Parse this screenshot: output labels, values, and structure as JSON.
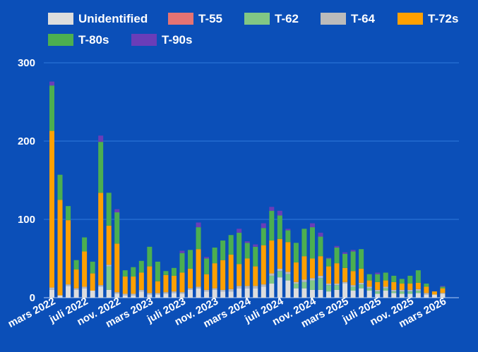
{
  "chart_data": {
    "type": "bar",
    "stacked": true,
    "title": "",
    "xlabel": "",
    "ylabel": "",
    "ylim": [
      0,
      300
    ],
    "yticks": [
      0,
      100,
      200,
      300
    ],
    "grid": true,
    "legend_position": "top",
    "tick_labels": [
      "mars 2022",
      "juli 2022",
      "nov. 2022",
      "mars 2023",
      "juli 2023",
      "nov. 2023",
      "mars 2024",
      "juli 2024",
      "nov. 2024",
      "mars 2025",
      "juli 2025",
      "nov. 2025",
      "mars 2026"
    ],
    "tick_months": [
      0,
      4,
      8,
      12,
      16,
      20,
      24,
      28,
      32,
      36,
      40,
      44,
      48
    ],
    "series": [
      {
        "name": "Unidentified",
        "color": "#dddddd",
        "values": [
          10,
          3,
          15,
          10,
          12,
          9,
          14,
          10,
          5,
          3,
          3,
          8,
          4,
          4,
          5,
          6,
          5,
          10,
          12,
          8,
          10,
          8,
          8,
          12,
          12,
          12,
          14,
          18,
          26,
          22,
          12,
          12,
          10,
          10,
          8,
          10,
          18,
          9,
          12,
          9,
          5,
          9,
          6,
          5,
          5,
          6,
          4,
          4,
          5
        ]
      },
      {
        "name": "T-55",
        "color": "#e57373",
        "values": [
          0,
          0,
          0,
          0,
          0,
          0,
          0,
          0,
          0,
          0,
          0,
          0,
          0,
          0,
          0,
          0,
          0,
          0,
          0,
          0,
          0,
          0,
          0,
          0,
          0,
          0,
          0,
          0,
          0,
          0,
          0,
          0,
          0,
          0,
          0,
          0,
          0,
          0,
          0,
          0,
          0,
          0,
          0,
          0,
          0,
          0,
          0,
          0,
          0
        ]
      },
      {
        "name": "T-62",
        "color": "#81c784",
        "values": [
          0,
          0,
          0,
          0,
          0,
          0,
          0,
          30,
          0,
          0,
          0,
          0,
          0,
          0,
          0,
          0,
          0,
          0,
          0,
          0,
          0,
          0,
          0,
          0,
          0,
          0,
          0,
          10,
          8,
          8,
          6,
          8,
          12,
          15,
          8,
          6,
          0,
          5,
          5,
          3,
          3,
          3,
          2,
          3,
          3,
          3,
          0,
          0,
          0
        ]
      },
      {
        "name": "T-64",
        "color": "#bbbbbb",
        "values": [
          3,
          0,
          2,
          2,
          2,
          0,
          2,
          2,
          2,
          2,
          2,
          2,
          2,
          2,
          2,
          2,
          2,
          2,
          2,
          2,
          2,
          2,
          3,
          3,
          3,
          3,
          3,
          3,
          3,
          3,
          2,
          3,
          3,
          3,
          2,
          2,
          2,
          2,
          2,
          2,
          2,
          2,
          2,
          2,
          2,
          2,
          2,
          0,
          1
        ]
      },
      {
        "name": "T-72s",
        "color": "#ffa000",
        "values": [
          200,
          122,
          82,
          24,
          45,
          22,
          118,
          50,
          62,
          22,
          22,
          22,
          34,
          15,
          22,
          20,
          25,
          25,
          48,
          20,
          32,
          38,
          44,
          28,
          35,
          25,
          50,
          42,
          38,
          38,
          25,
          30,
          25,
          25,
          22,
          26,
          18,
          18,
          18,
          8,
          10,
          8,
          10,
          8,
          8,
          8,
          8,
          4,
          6
        ]
      },
      {
        "name": "T-80s",
        "color": "#4caf50",
        "values": [
          58,
          32,
          18,
          12,
          18,
          15,
          65,
          42,
          40,
          8,
          12,
          15,
          25,
          25,
          5,
          10,
          25,
          24,
          28,
          20,
          20,
          25,
          25,
          40,
          20,
          25,
          22,
          38,
          30,
          15,
          25,
          35,
          40,
          25,
          10,
          20,
          18,
          25,
          25,
          8,
          10,
          10,
          8,
          6,
          10,
          16,
          4,
          0,
          2
        ]
      },
      {
        "name": "T-90s",
        "color": "#6a3db8",
        "values": [
          5,
          0,
          0,
          0,
          0,
          0,
          8,
          0,
          4,
          0,
          0,
          0,
          0,
          0,
          0,
          0,
          3,
          0,
          6,
          2,
          0,
          0,
          0,
          5,
          2,
          3,
          6,
          5,
          6,
          2,
          0,
          0,
          5,
          5,
          1,
          2,
          2,
          2,
          0,
          0,
          2,
          0,
          0,
          0,
          0,
          0,
          0,
          0,
          1
        ]
      }
    ]
  }
}
